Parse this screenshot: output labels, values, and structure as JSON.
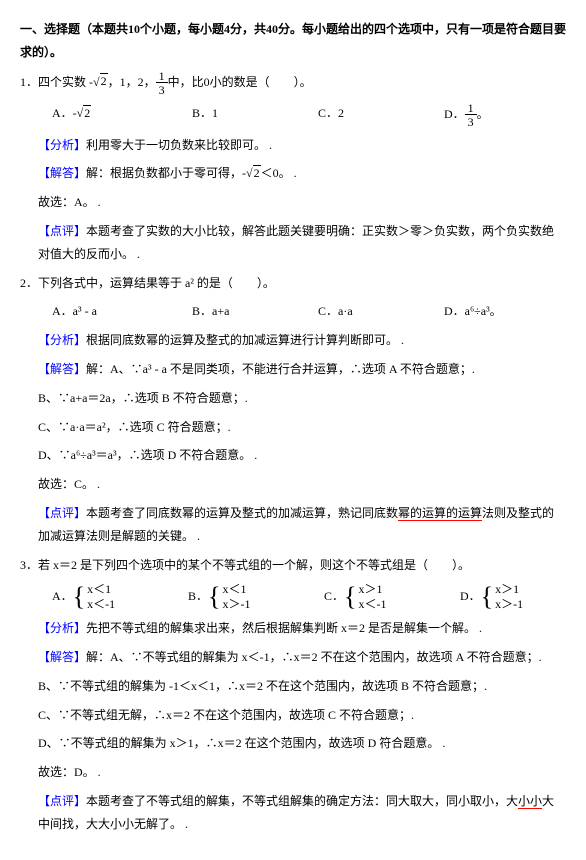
{
  "header": "一、选择题（本题共10个小题，每小题4分，共40分。每小题给出的四个选项中，只有一项是符合题目要求的）。",
  "q1": {
    "stem_a": "1．四个实数 -",
    "stem_b": "，1，2，",
    "stem_c": "中，比0小的数是（　　）。",
    "sqrt2": "2",
    "frac": {
      "n": "1",
      "d": "3"
    },
    "A_pre": "A．-",
    "A_sqrt": "2",
    "B": "B．1",
    "C": "C．2",
    "D_pre": "D．",
    "fenxi_lbl": "【分析】",
    "fenxi": "利用零大于一切负数来比较即可。 .",
    "jieda_lbl": "【解答】",
    "jieda_a": "解：根据负数都小于零可得，-",
    "jieda_b": "＜0。 .",
    "guxuan": "故选：A。 .",
    "dp_lbl": "【点评】",
    "dp": "本题考查了实数的大小比较，解答此题关键要明确：正实数＞零＞负实数，两个负实数绝对值大的反而小。 ."
  },
  "q2": {
    "stem": "2．下列各式中，运算结果等于 a² 的是（　　）。",
    "A": "A．a³ - a",
    "B": "B．a+a",
    "C": "C．a·a",
    "D": "D．a⁶÷a³。",
    "fenxi_lbl": "【分析】",
    "fenxi": "根据同底数幂的运算及整式的加减运算进行计算判断即可。 .",
    "jieda_lbl": "【解答】",
    "jieda": "解：A、∵a³ - a 不是同类项，不能进行合并运算，∴选项 A 不符合题意；.",
    "b": "B、∵a+a＝2a，∴选项 B 不符合题意；.",
    "c": "C、∵a·a＝a²，∴选项 C 符合题意；.",
    "d": "D、∵a⁶÷a³＝a³，∴选项 D 不符合题意。 .",
    "guxuan": "故选：C。 .",
    "dp_lbl": "【点评】",
    "dp_a": "本题考查了同底数幂的运算及整式的加减运算，熟记同底数",
    "dp_u": "幂的运算的运算",
    "dp_b": "法则及整式的加减运算法则是解题的关键。 ."
  },
  "q3": {
    "stem": "3．若 x＝2 是下列四个选项中的某个不等式组的一个解，则这个不等式组是（　　）。",
    "A_l": "A．",
    "A1": "x＜1",
    "A2": "x＜-1",
    "B_l": "B．",
    "B1": "x＜1",
    "B2": "x＞-1",
    "C_l": "C．",
    "C1": "x＞1",
    "C2": "x＜-1",
    "D_l": "D．",
    "D1": "x＞1",
    "D2": "x＞-1",
    "fenxi_lbl": "【分析】",
    "fenxi": "先把不等式组的解集求出来，然后根据解集判断 x＝2 是否是解集一个解。 .",
    "jieda_lbl": "【解答】",
    "jieda": "解：A、∵不等式组的解集为 x＜-1，∴x＝2 不在这个范围内，故选项 A 不符合题意；.",
    "b": "B、∵不等式组的解集为 -1＜x＜1，∴x＝2 不在这个范围内，故选项 B 不符合题意；.",
    "c": "C、∵不等式组无解，∴x＝2 不在这个范围内，故选项 C 不符合题意；.",
    "d": "D、∵不等式组的解集为 x＞1，∴x＝2 在这个范围内，故选项 D 符合题意。 .",
    "guxuan": "故选：D。 .",
    "dp_lbl": "【点评】",
    "dp_a": "本题考查了不等式组的解集，不等式组解集的确定方法：同大取大，同小取小，大",
    "dp_u": "小小",
    "dp_b": "大中间找，大大小小无解了。 ."
  },
  "label_color": "#0000ff"
}
